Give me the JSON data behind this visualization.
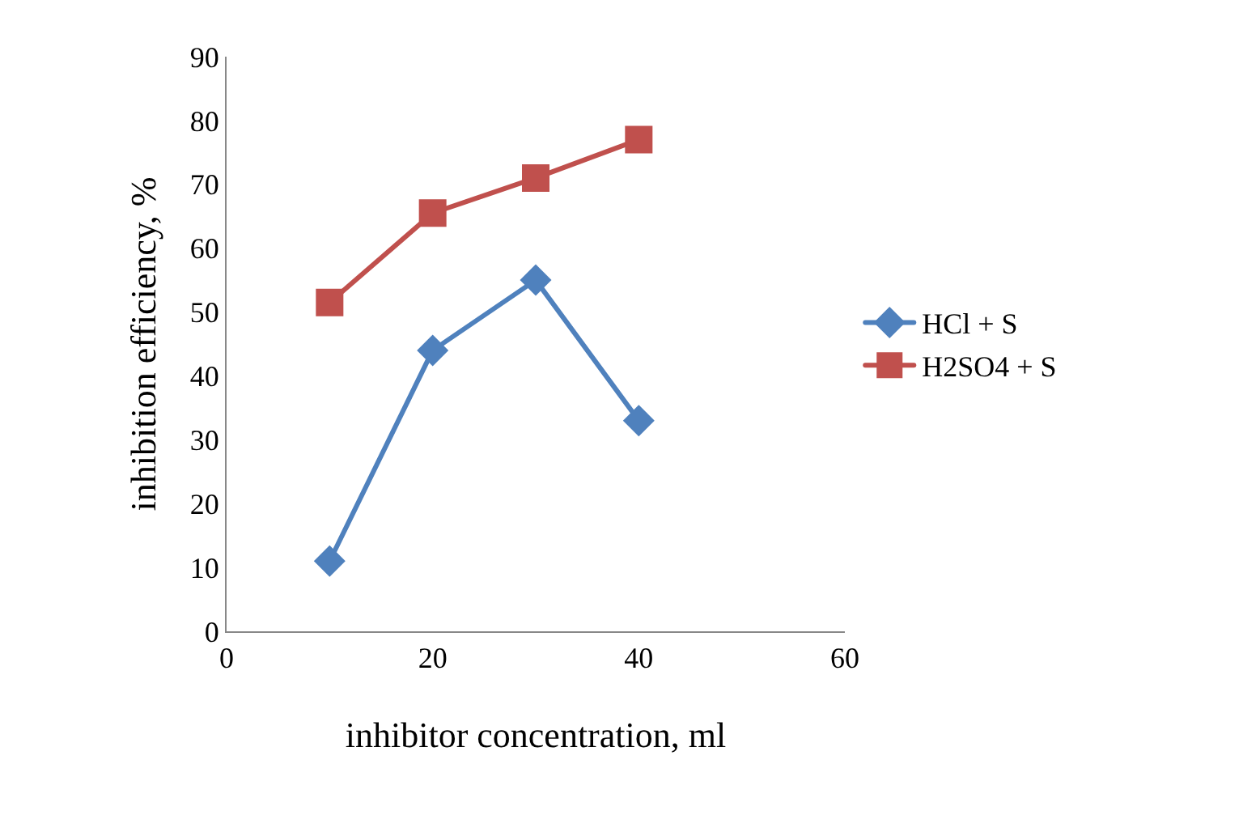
{
  "chart_data": {
    "type": "line",
    "xlabel": "inhibitor concentration, ml",
    "ylabel": "inhibition efficiency, %",
    "x": [
      10,
      20,
      30,
      40
    ],
    "series": [
      {
        "name": "HCl + S",
        "color": "#4f81bd",
        "marker": "diamond",
        "values": [
          11,
          44,
          55,
          33
        ]
      },
      {
        "name": "H2SO4 + S",
        "color": "#c0504d",
        "marker": "square",
        "values": [
          51.5,
          65.5,
          71,
          77
        ]
      }
    ],
    "xlim": [
      0,
      60
    ],
    "xticks": [
      0,
      20,
      40,
      60
    ],
    "ylim": [
      0,
      90
    ],
    "yticks": [
      0,
      10,
      20,
      30,
      40,
      50,
      60,
      70,
      80,
      90
    ],
    "grid": false,
    "legend": "right"
  }
}
